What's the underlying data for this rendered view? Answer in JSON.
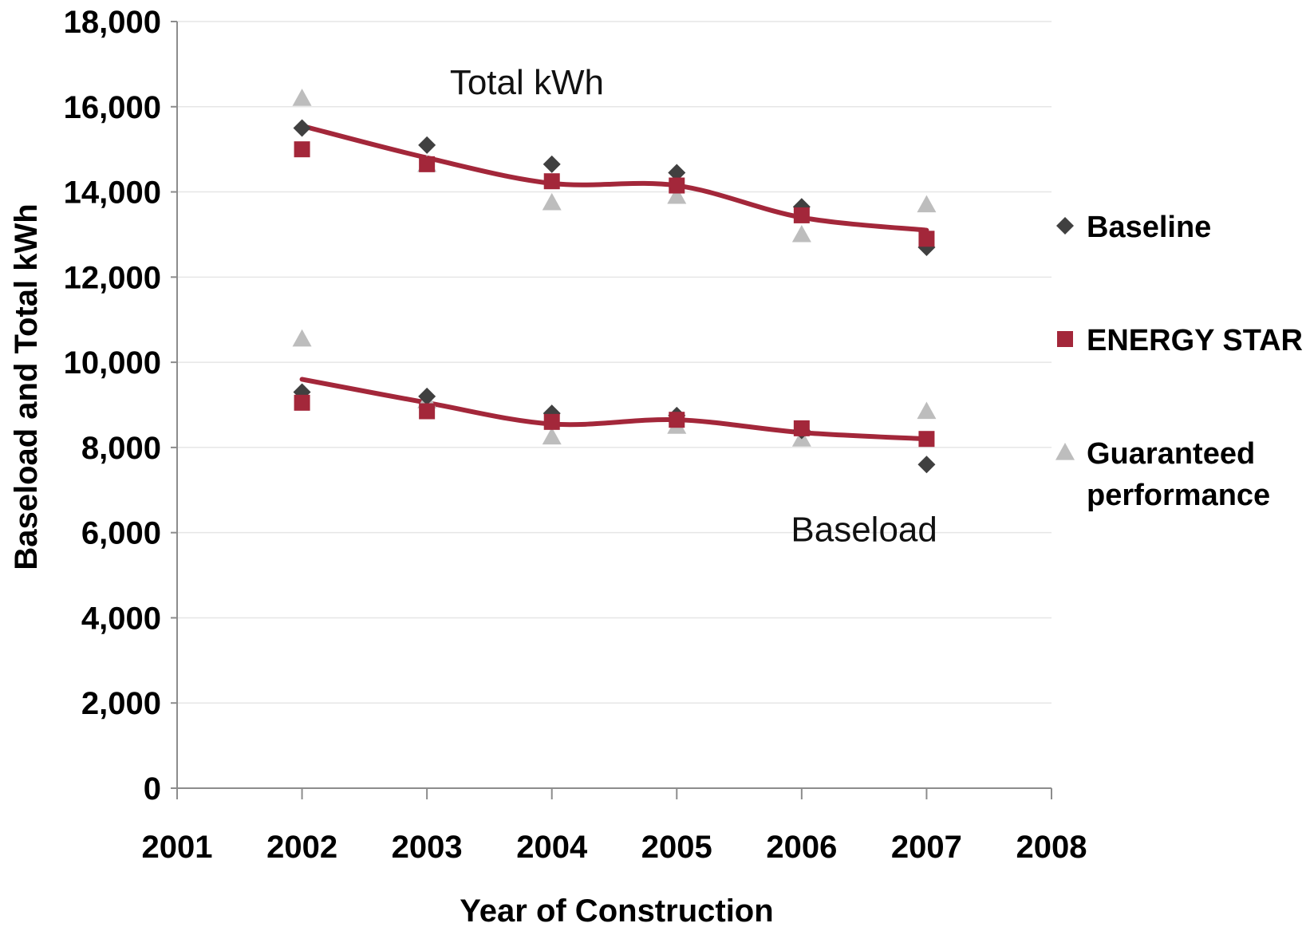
{
  "chart_data": {
    "type": "scatter",
    "title": "",
    "xlabel": "Year of Construction",
    "ylabel": "Baseload and Total kWh",
    "xlim": [
      2001,
      2008
    ],
    "ylim": [
      0,
      18000
    ],
    "x_ticks": [
      "2001",
      "2002",
      "2003",
      "2004",
      "2005",
      "2006",
      "2007",
      "2008"
    ],
    "y_ticks": [
      "0",
      "2,000",
      "4,000",
      "6,000",
      "8,000",
      "10,000",
      "12,000",
      "14,000",
      "16,000",
      "18,000"
    ],
    "grid": "horizontal",
    "legend_position": "right",
    "x": [
      2002,
      2003,
      2004,
      2005,
      2006,
      2007
    ],
    "series": [
      {
        "name": "Baseline",
        "group": "total",
        "marker": "diamond",
        "color": "#404040",
        "values": [
          15500,
          15100,
          14650,
          14450,
          13650,
          12700
        ]
      },
      {
        "name": "ENERGY STAR",
        "group": "total",
        "marker": "square",
        "color": "#a3273a",
        "values": [
          15000,
          14650,
          14250,
          14150,
          13450,
          12900
        ]
      },
      {
        "name": "Guaranteed performance",
        "group": "total",
        "marker": "triangle",
        "color": "#bdbdbd",
        "values": [
          16200,
          14650,
          13750,
          13900,
          13000,
          13700
        ]
      },
      {
        "name": "Baseline",
        "group": "baseload",
        "marker": "diamond",
        "color": "#404040",
        "values": [
          9300,
          9200,
          8800,
          8750,
          8400,
          7600
        ]
      },
      {
        "name": "ENERGY STAR",
        "group": "baseload",
        "marker": "square",
        "color": "#a3273a",
        "values": [
          9050,
          8850,
          8600,
          8650,
          8450,
          8200
        ]
      },
      {
        "name": "Guaranteed performance",
        "group": "baseload",
        "marker": "triangle",
        "color": "#bdbdbd",
        "values": [
          10550,
          9100,
          8250,
          8500,
          8200,
          8850
        ]
      }
    ],
    "trend_lines": [
      {
        "group": "total",
        "color": "#a3273a",
        "values": [
          15550,
          14800,
          14200,
          14150,
          13400,
          13100
        ]
      },
      {
        "group": "baseload",
        "color": "#a3273a",
        "values": [
          9600,
          9050,
          8550,
          8650,
          8350,
          8200
        ]
      }
    ],
    "annotations": [
      {
        "text": "Total kWh",
        "x": 2003.8,
        "y": 16300
      },
      {
        "text": "Baseload",
        "x": 2006.5,
        "y": 5800
      }
    ],
    "legend": [
      {
        "label": "Baseline",
        "marker": "diamond",
        "color": "#404040"
      },
      {
        "label": "ENERGY STAR",
        "marker": "square",
        "color": "#a3273a"
      },
      {
        "label": "Guaranteed performance",
        "lines": [
          "Guaranteed",
          "performance"
        ],
        "marker": "triangle",
        "color": "#bdbdbd"
      }
    ]
  }
}
